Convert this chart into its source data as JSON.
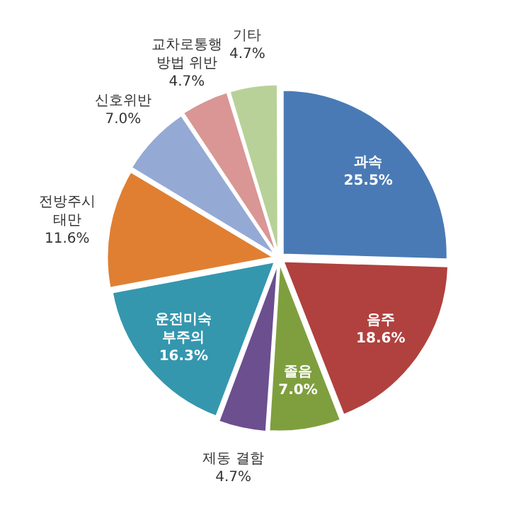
{
  "chart_data": {
    "type": "pie",
    "categories": [
      "과속",
      "음주",
      "졸음",
      "제동 결함",
      "운전미숙\n부주의",
      "전방주시\n태만",
      "신호위반",
      "교차로통행\n방법 위반",
      "기타"
    ],
    "values": [
      25.5,
      18.6,
      7.0,
      4.7,
      16.3,
      11.6,
      7.0,
      4.7,
      4.7
    ],
    "value_labels": [
      "25.5%",
      "18.6%",
      "7.0%",
      "4.7%",
      "16.3%",
      "11.6%",
      "7.0%",
      "4.7%",
      "4.7%"
    ],
    "colors": [
      "#4a7ab5",
      "#b0413e",
      "#7f9f3f",
      "#6b4f8f",
      "#3497ae",
      "#e07f32",
      "#94a9d4",
      "#d99694",
      "#b8d198"
    ],
    "legend": false
  }
}
